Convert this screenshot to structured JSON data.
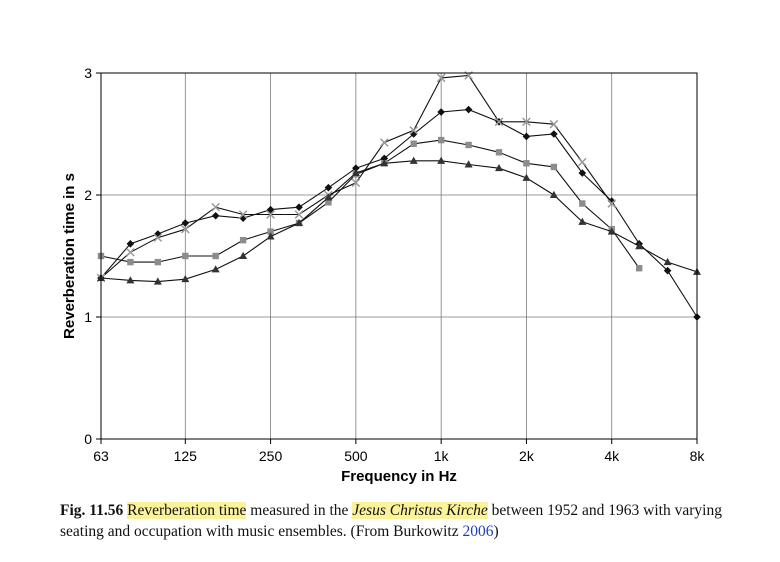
{
  "chart_data": {
    "type": "line",
    "xlabel": "Frequency in Hz",
    "ylabel": "Reverberation time in s",
    "x_scale": "log2",
    "x_tick_labels": [
      "63",
      "125",
      "250",
      "500",
      "1k",
      "2k",
      "4k",
      "8k"
    ],
    "x_tick_values": [
      63,
      125,
      250,
      500,
      1000,
      2000,
      4000,
      8000
    ],
    "ylim": [
      0,
      3
    ],
    "y_ticks": [
      0,
      1,
      2,
      3
    ],
    "grid": true,
    "series": [
      {
        "marker": "diamond",
        "points": [
          [
            63,
            1.32
          ],
          [
            80,
            1.6
          ],
          [
            100,
            1.68
          ],
          [
            125,
            1.77
          ],
          [
            160,
            1.83
          ],
          [
            200,
            1.81
          ],
          [
            250,
            1.88
          ],
          [
            315,
            1.9
          ],
          [
            400,
            2.06
          ],
          [
            500,
            2.22
          ],
          [
            630,
            2.3
          ],
          [
            800,
            2.5
          ],
          [
            1000,
            2.68
          ],
          [
            1250,
            2.7
          ],
          [
            1600,
            2.6
          ],
          [
            2000,
            2.48
          ],
          [
            2500,
            2.5
          ],
          [
            3150,
            2.18
          ],
          [
            4000,
            1.95
          ],
          [
            5000,
            1.6
          ],
          [
            6300,
            1.38
          ],
          [
            8000,
            1.0
          ]
        ]
      },
      {
        "marker": "cross",
        "points": [
          [
            63,
            1.32
          ],
          [
            80,
            1.53
          ],
          [
            100,
            1.65
          ],
          [
            125,
            1.72
          ],
          [
            160,
            1.9
          ],
          [
            200,
            1.84
          ],
          [
            250,
            1.84
          ],
          [
            315,
            1.84
          ],
          [
            400,
            2.0
          ],
          [
            500,
            2.1
          ],
          [
            630,
            2.43
          ],
          [
            800,
            2.53
          ],
          [
            1000,
            2.96
          ],
          [
            1250,
            2.98
          ],
          [
            1600,
            2.6
          ],
          [
            2000,
            2.6
          ],
          [
            2500,
            2.58
          ],
          [
            3150,
            2.27
          ],
          [
            4000,
            1.93
          ]
        ]
      },
      {
        "marker": "square",
        "points": [
          [
            63,
            1.5
          ],
          [
            80,
            1.45
          ],
          [
            100,
            1.45
          ],
          [
            125,
            1.5
          ],
          [
            160,
            1.5
          ],
          [
            200,
            1.63
          ],
          [
            250,
            1.7
          ],
          [
            315,
            1.77
          ],
          [
            400,
            1.94
          ],
          [
            500,
            2.17
          ],
          [
            630,
            2.26
          ],
          [
            800,
            2.42
          ],
          [
            1000,
            2.45
          ],
          [
            1250,
            2.41
          ],
          [
            1600,
            2.35
          ],
          [
            2000,
            2.26
          ],
          [
            2500,
            2.23
          ],
          [
            3150,
            1.93
          ],
          [
            4000,
            1.72
          ],
          [
            5000,
            1.4
          ]
        ]
      },
      {
        "marker": "triangle",
        "points": [
          [
            63,
            1.32
          ],
          [
            80,
            1.3
          ],
          [
            100,
            1.29
          ],
          [
            125,
            1.31
          ],
          [
            160,
            1.39
          ],
          [
            200,
            1.5
          ],
          [
            250,
            1.66
          ],
          [
            315,
            1.77
          ],
          [
            400,
            1.98
          ],
          [
            500,
            2.18
          ],
          [
            630,
            2.26
          ],
          [
            800,
            2.28
          ],
          [
            1000,
            2.28
          ],
          [
            1250,
            2.25
          ],
          [
            1600,
            2.22
          ],
          [
            2000,
            2.14
          ],
          [
            2500,
            2.0
          ],
          [
            3150,
            1.78
          ],
          [
            4000,
            1.7
          ],
          [
            5000,
            1.58
          ],
          [
            6300,
            1.45
          ],
          [
            8000,
            1.37
          ]
        ]
      }
    ]
  },
  "caption": {
    "fig_label": "Fig. 11.56",
    "highlight_1": "Reverberation time",
    "text_1": " measured in the ",
    "highlight_2": "Jesus Christus Kirche",
    "text_2": " between 1952 and 1963 with varying seating and occupation with music ensembles. (From Burkowitz ",
    "link": "2006",
    "text_3": ")"
  },
  "colors": {
    "line": "#111111",
    "grid": "#7a7a7a",
    "cross_marker": "#999999",
    "square_marker": "#8c8c8c",
    "triangle_marker": "#333333",
    "caption_highlight": "#fbf39a",
    "caption_link": "#1c3fb6"
  }
}
